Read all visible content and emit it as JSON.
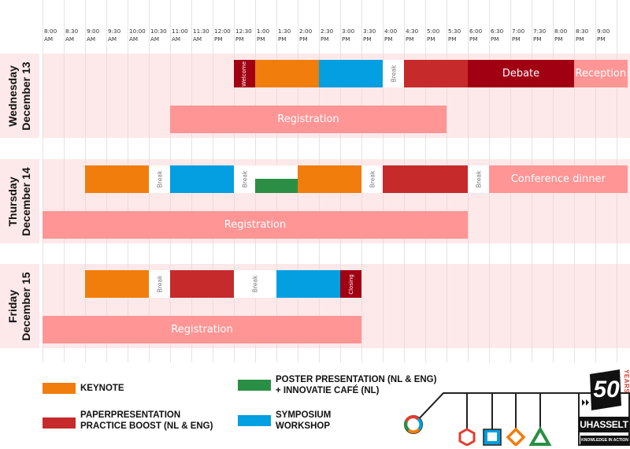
{
  "timeline": {
    "ticks": [
      {
        "time": "8:00",
        "ampm": "AM"
      },
      {
        "time": "8:30",
        "ampm": "AM"
      },
      {
        "time": "9:00",
        "ampm": "AM"
      },
      {
        "time": "9:30",
        "ampm": "AM"
      },
      {
        "time": "10:00",
        "ampm": "AM"
      },
      {
        "time": "10:30",
        "ampm": "AM"
      },
      {
        "time": "11:00",
        "ampm": "AM"
      },
      {
        "time": "11:30",
        "ampm": "AM"
      },
      {
        "time": "12:00",
        "ampm": "PM"
      },
      {
        "time": "12:30",
        "ampm": "PM"
      },
      {
        "time": "1:00",
        "ampm": "PM"
      },
      {
        "time": "1:30",
        "ampm": "PM"
      },
      {
        "time": "2:00",
        "ampm": "PM"
      },
      {
        "time": "2:30",
        "ampm": "PM"
      },
      {
        "time": "3:00",
        "ampm": "PM"
      },
      {
        "time": "3:30",
        "ampm": "PM"
      },
      {
        "time": "4:00",
        "ampm": "PM"
      },
      {
        "time": "4:30",
        "ampm": "PM"
      },
      {
        "time": "5:00",
        "ampm": "PM"
      },
      {
        "time": "5:30",
        "ampm": "PM"
      },
      {
        "time": "6:00",
        "ampm": "PM"
      },
      {
        "time": "6:30",
        "ampm": "PM"
      },
      {
        "time": "7:00",
        "ampm": "PM"
      },
      {
        "time": "7:30",
        "ampm": "PM"
      },
      {
        "time": "8:00",
        "ampm": "PM"
      },
      {
        "time": "8:30",
        "ampm": "PM"
      },
      {
        "time": "9:00",
        "ampm": "PM"
      }
    ]
  },
  "colors": {
    "keynote": "#f07d0c",
    "paper": "#c62a2b",
    "poster": "#2a8f44",
    "symposium": "#039fe0",
    "dark": "#a10013",
    "light": "#ff9595",
    "break": "#ffffff",
    "band": "#fde9ea"
  },
  "days": [
    {
      "weekday": "Wednesday",
      "date": "December 13",
      "events": [
        {
          "type": "dark",
          "label": "Welcome",
          "start": "12:30",
          "end": "13:00",
          "lane": "top",
          "vertical": true
        },
        {
          "type": "keynote",
          "label": "",
          "start": "13:00",
          "end": "14:30",
          "lane": "top"
        },
        {
          "type": "symposium",
          "label": "",
          "start": "14:30",
          "end": "16:00",
          "lane": "top"
        },
        {
          "type": "break",
          "label": "Break",
          "start": "16:00",
          "end": "16:30",
          "lane": "top",
          "vertical": true
        },
        {
          "type": "paper",
          "label": "",
          "start": "16:30",
          "end": "18:00",
          "lane": "top"
        },
        {
          "type": "dark",
          "label": "Debate",
          "start": "18:00",
          "end": "20:30",
          "lane": "top"
        },
        {
          "type": "light",
          "label": "Reception",
          "start": "20:30",
          "end": "21:45",
          "lane": "top"
        },
        {
          "type": "light",
          "label": "Registration",
          "start": "11:00",
          "end": "17:30",
          "lane": "bottom"
        }
      ]
    },
    {
      "weekday": "Thursday",
      "date": "December 14",
      "events": [
        {
          "type": "keynote",
          "label": "",
          "start": "9:00",
          "end": "10:30",
          "lane": "top"
        },
        {
          "type": "break",
          "label": "Break",
          "start": "10:30",
          "end": "11:00",
          "lane": "top",
          "vertical": true
        },
        {
          "type": "symposium",
          "label": "",
          "start": "11:00",
          "end": "12:30",
          "lane": "top"
        },
        {
          "type": "break",
          "label": "Break",
          "start": "12:30",
          "end": "13:00",
          "lane": "top",
          "vertical": true
        },
        {
          "type": "break",
          "label": "",
          "start": "13:00",
          "end": "14:00",
          "lane": "top"
        },
        {
          "type": "poster",
          "label": "",
          "start": "13:00",
          "end": "14:00",
          "lane": "top-lower"
        },
        {
          "type": "keynote",
          "label": "",
          "start": "14:00",
          "end": "15:30",
          "lane": "top"
        },
        {
          "type": "break",
          "label": "Break",
          "start": "15:30",
          "end": "16:00",
          "lane": "top",
          "vertical": true
        },
        {
          "type": "paper",
          "label": "",
          "start": "16:00",
          "end": "18:00",
          "lane": "top"
        },
        {
          "type": "break",
          "label": "Break",
          "start": "18:00",
          "end": "18:30",
          "lane": "top",
          "vertical": true
        },
        {
          "type": "light",
          "label": "Conference dinner",
          "start": "18:30",
          "end": "21:45",
          "lane": "top"
        },
        {
          "type": "light",
          "label": "Registration",
          "start": "8:00",
          "end": "18:00",
          "lane": "bottom"
        }
      ]
    },
    {
      "weekday": "Friday",
      "date": "December 15",
      "events": [
        {
          "type": "keynote",
          "label": "",
          "start": "9:00",
          "end": "10:30",
          "lane": "top"
        },
        {
          "type": "break",
          "label": "Break",
          "start": "10:30",
          "end": "11:00",
          "lane": "top",
          "vertical": true
        },
        {
          "type": "paper",
          "label": "",
          "start": "11:00",
          "end": "12:30",
          "lane": "top"
        },
        {
          "type": "break",
          "label": "Break",
          "start": "12:30",
          "end": "13:30",
          "lane": "top",
          "vertical": true
        },
        {
          "type": "symposium",
          "label": "",
          "start": "13:30",
          "end": "15:00",
          "lane": "top"
        },
        {
          "type": "dark",
          "label": "Closing",
          "start": "15:00",
          "end": "15:30",
          "lane": "top",
          "vertical": true
        },
        {
          "type": "light",
          "label": "Registration",
          "start": "8:00",
          "end": "15:30",
          "lane": "bottom"
        }
      ]
    }
  ],
  "legend": [
    {
      "type": "keynote",
      "lines": [
        "KEYNOTE"
      ]
    },
    {
      "type": "paper",
      "lines": [
        "PAPERPRESENTATION",
        "PRACTICE BOOST (NL & ENG)"
      ]
    },
    {
      "type": "poster",
      "lines": [
        "POSTER PRESENTATION (NL & ENG)",
        "+ INNOVATIE CAFÉ (NL)"
      ]
    },
    {
      "type": "symposium",
      "lines": [
        "SYMPOSIUM",
        "WORKSHOP"
      ]
    }
  ],
  "logo": {
    "number": "50",
    "years": "YEARS",
    "name": "UHASSELT",
    "tagline": "KNOWLEDGE IN ACTION"
  }
}
